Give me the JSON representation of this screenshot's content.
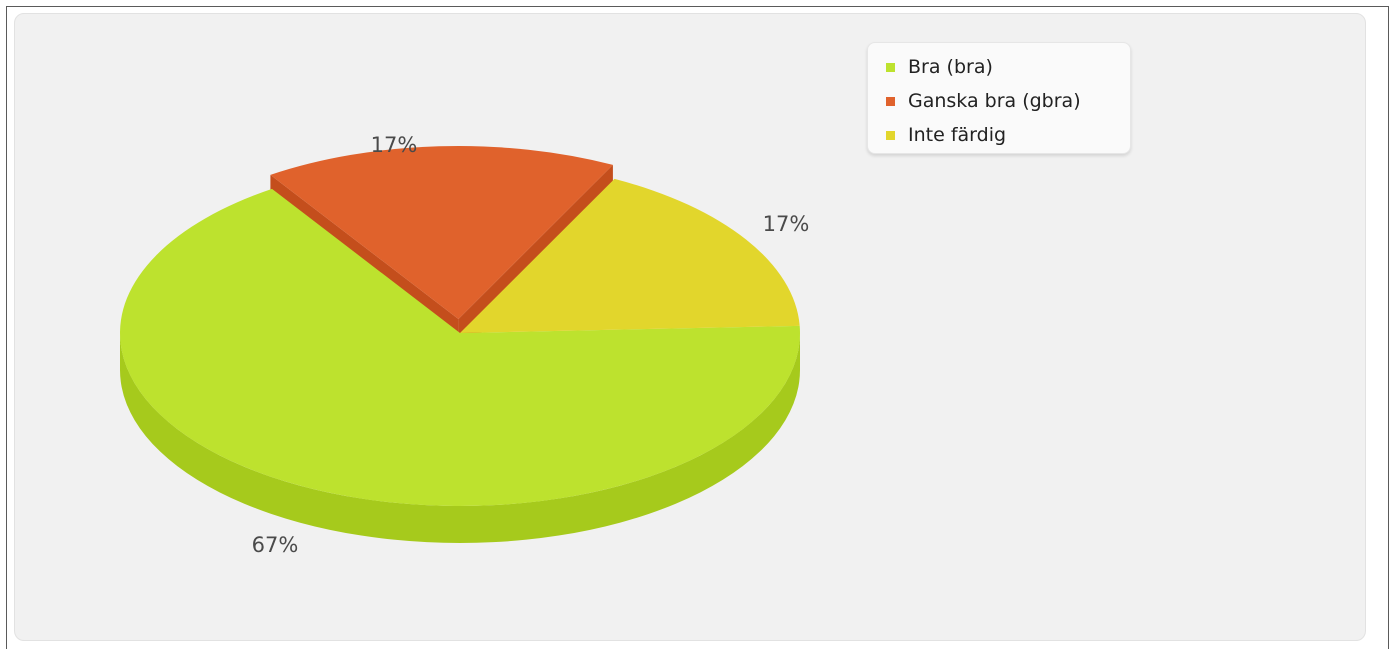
{
  "chart_data": {
    "type": "pie",
    "style": "3d",
    "legend_position": "top-right",
    "slices": [
      {
        "name": "Bra (bra)",
        "value": 67,
        "label": "67%",
        "color": "#bde22e",
        "side_color": "#a6ca1c",
        "exploded": false
      },
      {
        "name": "Ganska bra (gbra)",
        "value": 17,
        "label": "17%",
        "color": "#e0622c",
        "side_color": "#c44e1c",
        "exploded": true
      },
      {
        "name": "Inte färdig",
        "value": 17,
        "label": "17%",
        "color": "#e2d62c",
        "side_color": "#c9bd1e",
        "exploded": false
      }
    ]
  }
}
